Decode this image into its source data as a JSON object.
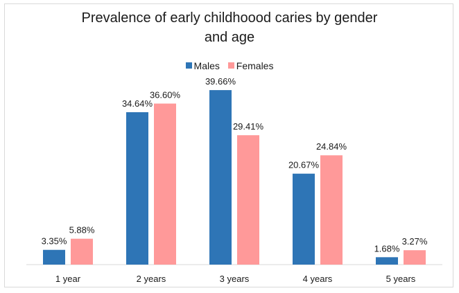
{
  "chart_data": {
    "type": "bar",
    "title_lines": [
      "Prevalence of early childhoood caries by gender",
      "and age"
    ],
    "categories": [
      "1 year",
      "2 years",
      "3 years",
      "4 years",
      "5 years"
    ],
    "series": [
      {
        "name": "Males",
        "values": [
          3.35,
          34.64,
          39.66,
          20.67,
          1.68
        ],
        "labels": [
          "3.35%",
          "34.64%",
          "39.66%",
          "20.67%",
          "1.68%"
        ]
      },
      {
        "name": "Females",
        "values": [
          5.88,
          36.6,
          29.41,
          24.84,
          3.27
        ],
        "labels": [
          "5.88%",
          "36.60%",
          "29.41%",
          "24.84%",
          "3.27%"
        ]
      }
    ],
    "ylim": [
      0,
      40
    ],
    "grid": false,
    "legend_position": "top",
    "colors": {
      "Males": "#2e75b6",
      "Females": "#ff9999"
    }
  }
}
